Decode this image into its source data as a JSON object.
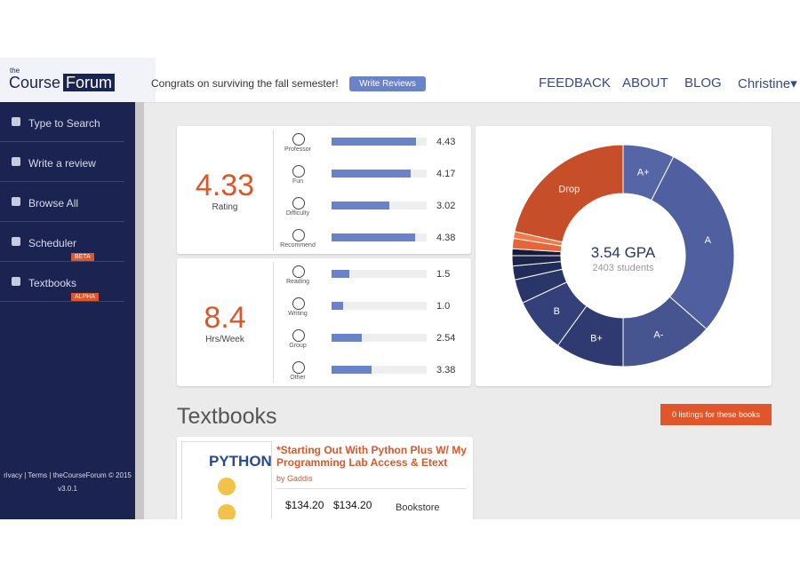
{
  "header": {
    "logo_small": "the",
    "logo_main": "Course",
    "logo_bold": "Forum",
    "message": "Congrats on surviving the fall semester!",
    "button": "Write Reviews",
    "nav": [
      "FEEDBACK",
      "ABOUT",
      "BLOG",
      "Christine"
    ]
  },
  "sidebar": {
    "items": [
      {
        "label": "Type to Search"
      },
      {
        "label": "Write a review"
      },
      {
        "label": "Browse All"
      },
      {
        "label": "Scheduler",
        "badge": "BETA"
      },
      {
        "label": "Textbooks",
        "badge": "ALPHA"
      }
    ],
    "footer": "rivacy | Terms | theCourseForum © 2015",
    "version": "v3.0.1"
  },
  "rating": {
    "value": 4.33,
    "label": "Rating",
    "xlim": [
      0,
      5
    ],
    "bars": [
      {
        "name": "Professor",
        "value": 4.43
      },
      {
        "name": "Fun",
        "value": 4.17
      },
      {
        "name": "Difficulty",
        "value": 3.02
      },
      {
        "name": "Recommend",
        "value": 4.38
      }
    ]
  },
  "hours": {
    "value": 8.4,
    "label": "Hrs/Week",
    "xlim": [
      0,
      8
    ],
    "bars": [
      {
        "name": "Reading",
        "value": 1.5
      },
      {
        "name": "Writing",
        "value": 1,
        "value_label": "1.0"
      },
      {
        "name": "Group",
        "value": 2.54
      },
      {
        "name": "Other",
        "value": 3.38
      }
    ]
  },
  "grades": {
    "title": "3.54 GPA",
    "subtitle": "2403 students",
    "slices": [
      {
        "label": "A+",
        "value": 7.5,
        "color": "#5565a6"
      },
      {
        "label": "A",
        "value": 29,
        "color": "#4f5fa0"
      },
      {
        "label": "A-",
        "value": 13.5,
        "color": "#46558f"
      },
      {
        "label": "B+",
        "value": 10,
        "color": "#2f3a70"
      },
      {
        "label": "B",
        "value": 8,
        "color": "#34407a"
      },
      {
        "label": null,
        "value": 3.5,
        "color": "#2a356a"
      },
      {
        "label": null,
        "value": 2,
        "color": "#222c5a"
      },
      {
        "label": null,
        "value": 1.5,
        "color": "#1c2449"
      },
      {
        "label": null,
        "value": 1,
        "color": "#151b38"
      },
      {
        "label": null,
        "value": 1.5,
        "color": "#e8653a"
      },
      {
        "label": null,
        "value": 1,
        "color": "#f07a4c"
      },
      {
        "label": "Drop",
        "value": 21.5,
        "color": "#c64f29"
      }
    ]
  },
  "textbooks": {
    "title": "Textbooks",
    "button": "0 listings for these books",
    "book": {
      "cover": "PYTHON",
      "title": "*Starting Out With Python Plus W/ My Programming Lab Access & Etext",
      "author": "by Gaddis",
      "prices": [
        "$134.20",
        "$134.20"
      ],
      "source": "Bookstore"
    }
  }
}
